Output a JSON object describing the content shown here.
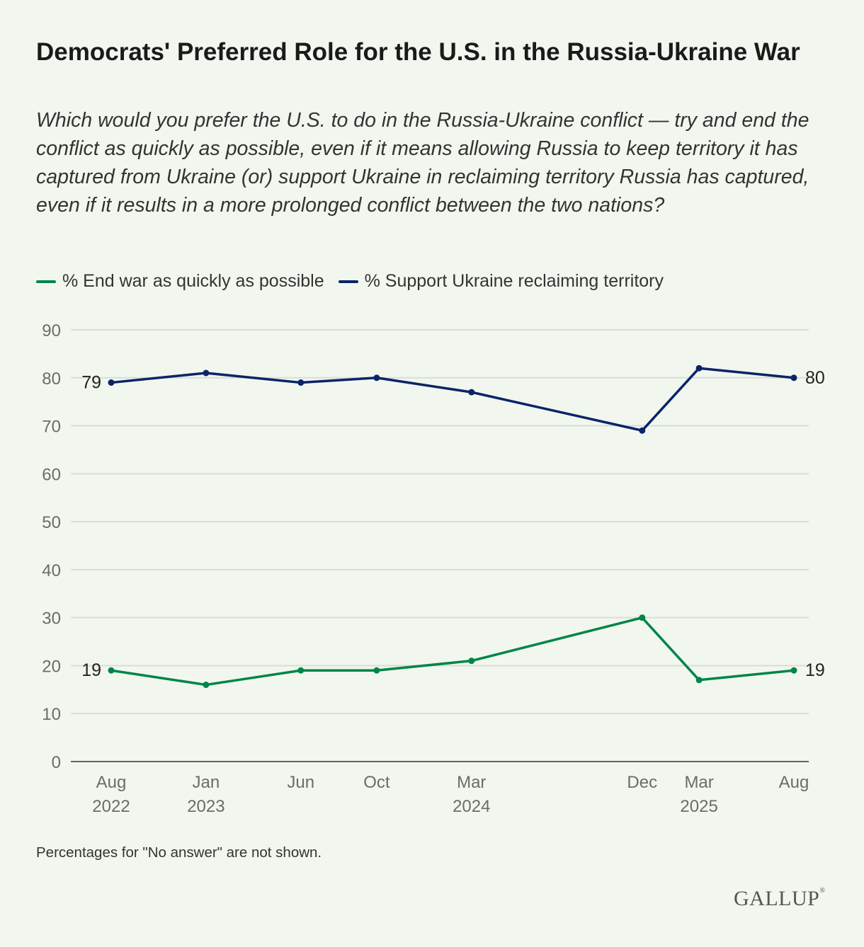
{
  "title": "Democrats' Preferred Role for the U.S. in the Russia-Ukraine War",
  "subtitle": "Which would you prefer the U.S. to do in the Russia-Ukraine conflict — try and end the conflict as quickly as possible, even if it means allowing Russia to keep territory it has captured from Ukraine (or) support Ukraine in reclaiming territory Russia has captured, even if it results in a more prolonged conflict between the two nations?",
  "legend": [
    {
      "label": "% End war as quickly as possible",
      "color": "#008548"
    },
    {
      "label": "% Support Ukraine reclaiming territory",
      "color": "#0a2467"
    }
  ],
  "note": "Percentages for \"No answer\" are not shown.",
  "logo": "GALLUP",
  "chart_data": {
    "type": "line",
    "title": "Democrats' Preferred Role for the U.S. in the Russia-Ukraine War",
    "xlabel": "",
    "ylabel": "",
    "ylim": [
      0,
      90
    ],
    "yticks": [
      0,
      10,
      20,
      30,
      40,
      50,
      60,
      70,
      80,
      90
    ],
    "grid": true,
    "legend_position": "top-left",
    "x": [
      "Aug 2022",
      "Jan 2023",
      "Jun 2023",
      "Oct 2023",
      "Mar 2024",
      "Dec 2024",
      "Mar 2025",
      "Aug 2025"
    ],
    "x_months_index": [
      0,
      5,
      10,
      14,
      19,
      28,
      31,
      36
    ],
    "xtick_labels": [
      {
        "line1": "Aug",
        "line2": "2022"
      },
      {
        "line1": "Jan",
        "line2": "2023"
      },
      {
        "line1": "Jun",
        "line2": ""
      },
      {
        "line1": "Oct",
        "line2": ""
      },
      {
        "line1": "Mar",
        "line2": "2024"
      },
      {
        "line1": "Dec",
        "line2": ""
      },
      {
        "line1": "Mar",
        "line2": "2025"
      },
      {
        "line1": "Aug",
        "line2": ""
      }
    ],
    "series": [
      {
        "name": "% End war as quickly as possible",
        "color": "#008548",
        "values": [
          19,
          16,
          19,
          19,
          21,
          30,
          17,
          19
        ],
        "labels": {
          "first": "19",
          "last": "19"
        }
      },
      {
        "name": "% Support Ukraine reclaiming territory",
        "color": "#0a2467",
        "values": [
          79,
          81,
          79,
          80,
          77,
          69,
          82,
          80
        ],
        "labels": {
          "first": "79",
          "last": "80"
        }
      }
    ]
  }
}
